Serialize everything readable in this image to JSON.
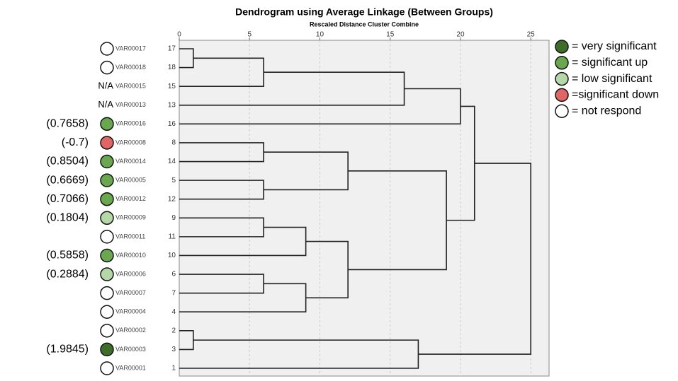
{
  "chart_data": {
    "type": "dendrogram",
    "title": "Dendrogram using Average Linkage (Between Groups)",
    "subtitle": "Rescaled Distance Cluster Combine",
    "xlim": [
      0,
      26.3
    ],
    "xticks": [
      0,
      5,
      10,
      15,
      20,
      25
    ],
    "grid": true,
    "legend": [
      {
        "label": "= very significant",
        "color": "#3f6e2b"
      },
      {
        "label": "= significant up",
        "color": "#6aa84f"
      },
      {
        "label": "= low significant",
        "color": "#b6d7a8"
      },
      {
        "label": "=significant down",
        "color": "#e06666"
      },
      {
        "label": "= not respond",
        "color": "#ffffff"
      }
    ],
    "leaves": [
      {
        "label": "VAR00017",
        "case": 17,
        "status": 4
      },
      {
        "label": "VAR00018",
        "case": 18,
        "status": 4
      },
      {
        "label": "VAR00015",
        "case": 15,
        "note": "N/A"
      },
      {
        "label": "VAR00013",
        "case": 13,
        "note": "N/A"
      },
      {
        "label": "VAR00016",
        "case": 16,
        "status": 1,
        "note": "(0.7658)"
      },
      {
        "label": "VAR00008",
        "case": 8,
        "status": 3,
        "note": "(-0.7)"
      },
      {
        "label": "VAR00014",
        "case": 14,
        "status": 1,
        "note": "(0.8504)"
      },
      {
        "label": "VAR00005",
        "case": 5,
        "status": 1,
        "note": "(0.6669)"
      },
      {
        "label": "VAR00012",
        "case": 12,
        "status": 1,
        "note": "(0.7066)"
      },
      {
        "label": "VAR00009",
        "case": 9,
        "status": 2,
        "note": "(0.1804)"
      },
      {
        "label": "VAR00011",
        "case": 11,
        "status": 4
      },
      {
        "label": "VAR00010",
        "case": 10,
        "status": 1,
        "note": "(0.5858)"
      },
      {
        "label": "VAR00006",
        "case": 6,
        "status": 2,
        "note": "(0.2884)"
      },
      {
        "label": "VAR00007",
        "case": 7,
        "status": 4
      },
      {
        "label": "VAR00004",
        "case": 4,
        "status": 4
      },
      {
        "label": "VAR00002",
        "case": 2,
        "status": 4
      },
      {
        "label": "VAR00003",
        "case": 3,
        "status": 0,
        "note": "(1.9845)"
      },
      {
        "label": "VAR00001",
        "case": 1,
        "status": 4
      }
    ],
    "merges": [
      {
        "left": 0,
        "right": 1,
        "distance": 1
      },
      {
        "left": 18,
        "right": 2,
        "distance": 6
      },
      {
        "left": 19,
        "right": 3,
        "distance": 16
      },
      {
        "left": 20,
        "right": 4,
        "distance": 20
      },
      {
        "left": 5,
        "right": 6,
        "distance": 6
      },
      {
        "left": 7,
        "right": 8,
        "distance": 6
      },
      {
        "left": 22,
        "right": 23,
        "distance": 12
      },
      {
        "left": 9,
        "right": 10,
        "distance": 6
      },
      {
        "left": 25,
        "right": 11,
        "distance": 9
      },
      {
        "left": 12,
        "right": 13,
        "distance": 6
      },
      {
        "left": 27,
        "right": 14,
        "distance": 9
      },
      {
        "left": 26,
        "right": 28,
        "distance": 12
      },
      {
        "left": 24,
        "right": 29,
        "distance": 19
      },
      {
        "left": 21,
        "right": 30,
        "distance": 21
      },
      {
        "left": 15,
        "right": 16,
        "distance": 1
      },
      {
        "left": 32,
        "right": 17,
        "distance": 17
      },
      {
        "left": 31,
        "right": 33,
        "distance": 25
      }
    ]
  }
}
